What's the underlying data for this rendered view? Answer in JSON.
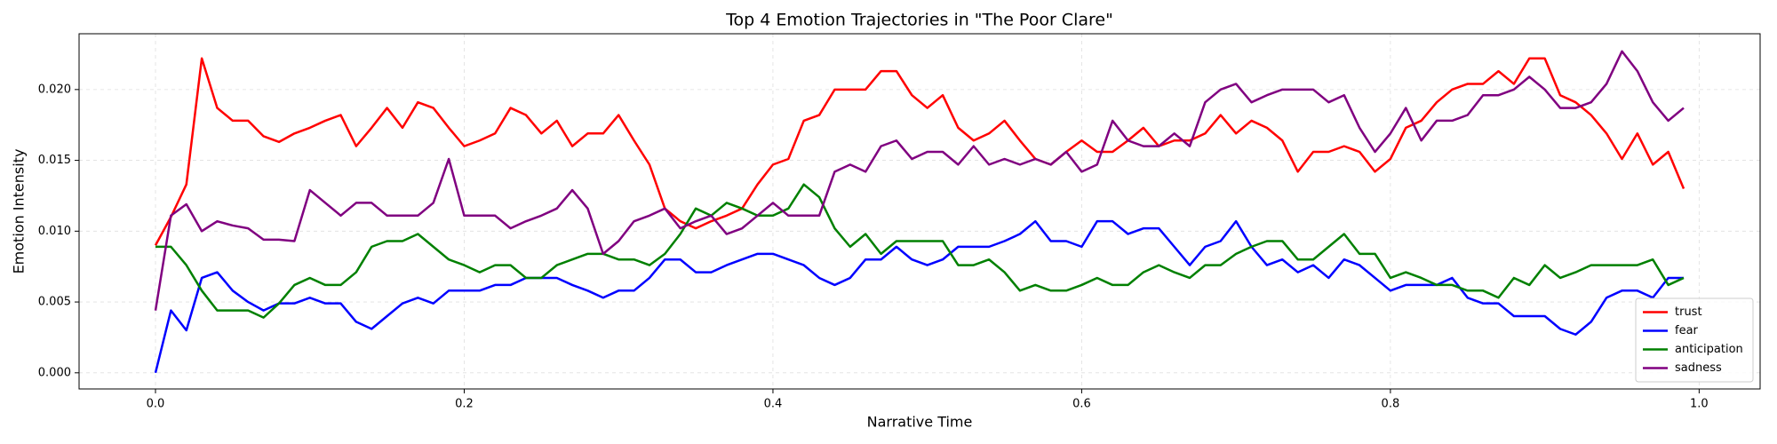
{
  "chart_data": {
    "type": "line",
    "title": "Top 4 Emotion Trajectories in \"The Poor Clare\"",
    "xlabel": "Narrative Time",
    "ylabel": "Emotion Intensity",
    "x": [
      0,
      0.01,
      0.02,
      0.03,
      0.04,
      0.05,
      0.06,
      0.07,
      0.08,
      0.09,
      0.1,
      0.11,
      0.12,
      0.13,
      0.14,
      0.15,
      0.16,
      0.17,
      0.18,
      0.19,
      0.2,
      0.21,
      0.22,
      0.23,
      0.24,
      0.25,
      0.26,
      0.27,
      0.28,
      0.29,
      0.3,
      0.31,
      0.32,
      0.33,
      0.34,
      0.35,
      0.36,
      0.37,
      0.38,
      0.39,
      0.4,
      0.41,
      0.42,
      0.43,
      0.44,
      0.45,
      0.46,
      0.47,
      0.48,
      0.49,
      0.5,
      0.51,
      0.52,
      0.53,
      0.54,
      0.55,
      0.56,
      0.57,
      0.58,
      0.59,
      0.6,
      0.61,
      0.62,
      0.63,
      0.64,
      0.65,
      0.66,
      0.67,
      0.68,
      0.69,
      0.7,
      0.71,
      0.72,
      0.73,
      0.74,
      0.75,
      0.76,
      0.77,
      0.78,
      0.79,
      0.8,
      0.81,
      0.82,
      0.83,
      0.84,
      0.85,
      0.86,
      0.87,
      0.88,
      0.89,
      0.9,
      0.91,
      0.92,
      0.93,
      0.94,
      0.95,
      0.96,
      0.97,
      0.98,
      0.99
    ],
    "series": [
      {
        "name": "trust",
        "color": "#ff0000",
        "values": [
          0.009,
          0.011,
          0.0133,
          0.0222,
          0.0187,
          0.0178,
          0.0178,
          0.0167,
          0.0163,
          0.0169,
          0.0173,
          0.0178,
          0.0182,
          0.016,
          0.0173,
          0.0187,
          0.0173,
          0.0191,
          0.0187,
          0.0173,
          0.016,
          0.0164,
          0.0169,
          0.0187,
          0.0182,
          0.0169,
          0.0178,
          0.016,
          0.0169,
          0.0169,
          0.0182,
          0.0164,
          0.0147,
          0.0116,
          0.0107,
          0.0102,
          0.0107,
          0.0111,
          0.0116,
          0.0133,
          0.0147,
          0.0151,
          0.0178,
          0.0182,
          0.02,
          0.02,
          0.02,
          0.0213,
          0.0213,
          0.0196,
          0.0187,
          0.0196,
          0.0173,
          0.0164,
          0.0169,
          0.0178,
          0.0164,
          0.0151,
          0.0147,
          0.0156,
          0.0164,
          0.0156,
          0.0156,
          0.0164,
          0.0173,
          0.016,
          0.0164,
          0.0164,
          0.0169,
          0.0182,
          0.0169,
          0.0178,
          0.0173,
          0.0164,
          0.0142,
          0.0156,
          0.0156,
          0.016,
          0.0156,
          0.0142,
          0.0151,
          0.0173,
          0.0178,
          0.0191,
          0.02,
          0.0204,
          0.0204,
          0.0213,
          0.0204,
          0.0222,
          0.0222,
          0.0196,
          0.0191,
          0.0182,
          0.0169,
          0.0151,
          0.0169,
          0.0147,
          0.0156,
          0.013
        ]
      },
      {
        "name": "fear",
        "color": "#0000ff",
        "values": [
          0,
          0.0044,
          0.003,
          0.0067,
          0.0071,
          0.0058,
          0.005,
          0.0044,
          0.0049,
          0.0049,
          0.0053,
          0.0049,
          0.0049,
          0.0036,
          0.0031,
          0.004,
          0.0049,
          0.0053,
          0.0049,
          0.0058,
          0.0058,
          0.0058,
          0.0062,
          0.0062,
          0.0067,
          0.0067,
          0.0067,
          0.0062,
          0.0058,
          0.0053,
          0.0058,
          0.0058,
          0.0067,
          0.008,
          0.008,
          0.0071,
          0.0071,
          0.0076,
          0.008,
          0.0084,
          0.0084,
          0.008,
          0.0076,
          0.0067,
          0.0062,
          0.0067,
          0.008,
          0.008,
          0.0089,
          0.008,
          0.0076,
          0.008,
          0.0089,
          0.0089,
          0.0089,
          0.0093,
          0.0098,
          0.0107,
          0.0093,
          0.0093,
          0.0089,
          0.0107,
          0.0107,
          0.0098,
          0.0102,
          0.0102,
          0.0089,
          0.0076,
          0.0089,
          0.0093,
          0.0107,
          0.0089,
          0.0076,
          0.008,
          0.0071,
          0.0076,
          0.0067,
          0.008,
          0.0076,
          0.0067,
          0.0058,
          0.0062,
          0.0062,
          0.0062,
          0.0067,
          0.0053,
          0.0049,
          0.0049,
          0.004,
          0.004,
          0.004,
          0.0031,
          0.0027,
          0.0036,
          0.0053,
          0.0058,
          0.0058,
          0.0053,
          0.0067,
          0.0067
        ]
      },
      {
        "name": "anticipation",
        "color": "#008000",
        "values": [
          0.0089,
          0.0089,
          0.0076,
          0.0058,
          0.0044,
          0.0044,
          0.0044,
          0.0039,
          0.0049,
          0.0062,
          0.0067,
          0.0062,
          0.0062,
          0.0071,
          0.0089,
          0.0093,
          0.0093,
          0.0098,
          0.0089,
          0.008,
          0.0076,
          0.0071,
          0.0076,
          0.0076,
          0.0067,
          0.0067,
          0.0076,
          0.008,
          0.0084,
          0.0084,
          0.008,
          0.008,
          0.0076,
          0.0084,
          0.0098,
          0.0116,
          0.0111,
          0.012,
          0.0116,
          0.0111,
          0.0111,
          0.0116,
          0.0133,
          0.0124,
          0.0102,
          0.0089,
          0.0098,
          0.0084,
          0.0093,
          0.0093,
          0.0093,
          0.0093,
          0.0076,
          0.0076,
          0.008,
          0.0071,
          0.0058,
          0.0062,
          0.0058,
          0.0058,
          0.0062,
          0.0067,
          0.0062,
          0.0062,
          0.0071,
          0.0076,
          0.0071,
          0.0067,
          0.0076,
          0.0076,
          0.0084,
          0.0089,
          0.0093,
          0.0093,
          0.008,
          0.008,
          0.0089,
          0.0098,
          0.0084,
          0.0084,
          0.0067,
          0.0071,
          0.0067,
          0.0062,
          0.0062,
          0.0058,
          0.0058,
          0.0053,
          0.0067,
          0.0062,
          0.0076,
          0.0067,
          0.0071,
          0.0076,
          0.0076,
          0.0076,
          0.0076,
          0.008,
          0.0062,
          0.0067
        ]
      },
      {
        "name": "sadness",
        "color": "#800080",
        "values": [
          0.0044,
          0.0111,
          0.0119,
          0.01,
          0.0107,
          0.0104,
          0.0102,
          0.0094,
          0.0094,
          0.0093,
          0.0129,
          0.012,
          0.0111,
          0.012,
          0.012,
          0.0111,
          0.0111,
          0.0111,
          0.012,
          0.0151,
          0.0111,
          0.0111,
          0.0111,
          0.0102,
          0.0107,
          0.0111,
          0.0116,
          0.0129,
          0.0116,
          0.0084,
          0.0093,
          0.0107,
          0.0111,
          0.0116,
          0.0102,
          0.0107,
          0.0111,
          0.0098,
          0.0102,
          0.0111,
          0.012,
          0.0111,
          0.0111,
          0.0111,
          0.0142,
          0.0147,
          0.0142,
          0.016,
          0.0164,
          0.0151,
          0.0156,
          0.0156,
          0.0147,
          0.016,
          0.0147,
          0.0151,
          0.0147,
          0.0151,
          0.0147,
          0.0156,
          0.0142,
          0.0147,
          0.0178,
          0.0164,
          0.016,
          0.016,
          0.0169,
          0.016,
          0.0191,
          0.02,
          0.0204,
          0.0191,
          0.0196,
          0.02,
          0.02,
          0.02,
          0.0191,
          0.0196,
          0.0173,
          0.0156,
          0.0169,
          0.0187,
          0.0164,
          0.0178,
          0.0178,
          0.0182,
          0.0196,
          0.0196,
          0.02,
          0.0209,
          0.02,
          0.0187,
          0.0187,
          0.0191,
          0.0204,
          0.0227,
          0.0213,
          0.0191,
          0.0178,
          0.0187
        ]
      }
    ],
    "xlim": [
      -0.0495,
      1.0395
    ],
    "ylim": [
      -0.00114,
      0.02394
    ],
    "xticks": [
      {
        "value": 0,
        "label": "0.0"
      },
      0.2,
      0.4,
      0.6,
      0.8,
      {
        "value": 1,
        "label": "1.0"
      }
    ],
    "yticks": [
      {
        "value": 0,
        "label": "0.000"
      },
      {
        "value": 0.005,
        "label": "0.005"
      },
      {
        "value": 0.01,
        "label": "0.010"
      },
      {
        "value": 0.015,
        "label": "0.015"
      },
      {
        "value": 0.02,
        "label": "0.020"
      }
    ],
    "grid": true,
    "legend": "lower right"
  }
}
